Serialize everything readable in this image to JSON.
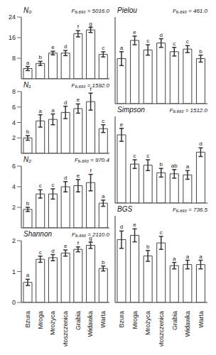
{
  "chart_data": [
    {
      "type": "bar",
      "title": "N₀",
      "annotation": "F₆,₆₉₃ = 5016.0",
      "categories": [
        "Bzura",
        "Mroga",
        "Mrożyca",
        "Moszczenica",
        "Grabia",
        "Widawka",
        "Warta"
      ],
      "values": [
        4,
        6,
        10,
        10,
        17.5,
        19,
        9.5
      ],
      "errors": [
        0.8,
        0.8,
        0.7,
        1,
        1.2,
        1,
        1
      ],
      "letters": [
        "a",
        "b",
        "e",
        "d",
        "f",
        "g",
        "c"
      ],
      "color": "#ffffff",
      "ylim": [
        0,
        24
      ],
      "yticks": [
        0,
        8,
        16,
        24
      ],
      "tick_labels": "y"
    },
    {
      "type": "bar",
      "title": "N₁",
      "annotation": "F₆,₆₉₃ = 1592.0",
      "categories": [
        "Bzura",
        "Mroga",
        "Mrożyca",
        "Moszczenica",
        "Grabia",
        "Widawka",
        "Warta"
      ],
      "values": [
        2,
        4.2,
        4.4,
        5.3,
        5.8,
        6.7,
        3.2
      ],
      "errors": [
        0.3,
        0.8,
        0.7,
        0.8,
        0.6,
        1.1,
        0.5
      ],
      "letters": [
        "b",
        "a",
        "a",
        "d",
        "e",
        "f",
        "c"
      ],
      "color": "#ffffff",
      "ylim": [
        0,
        8
      ],
      "yticks": [
        0,
        2,
        4,
        6,
        8
      ],
      "tick_labels": "y"
    },
    {
      "type": "bar",
      "title": "N₂",
      "annotation": "F₆,₆₉₃ = 970.4",
      "categories": [
        "Bzura",
        "Mroga",
        "Mrożyca",
        "Moszczenica",
        "Grabia",
        "Widawka",
        "Warta"
      ],
      "values": [
        1.8,
        3.3,
        3.3,
        4.0,
        4.1,
        4.4,
        2.4
      ],
      "errors": [
        0.2,
        0.4,
        0.5,
        0.5,
        0.6,
        0.8,
        0.3
      ],
      "letters": [
        "b",
        "c",
        "c",
        "d",
        "e",
        "f",
        "a"
      ],
      "color": "#ffffff",
      "ylim": [
        0,
        6
      ],
      "yticks": [
        0,
        2,
        4,
        6
      ],
      "tick_labels": "y"
    },
    {
      "type": "bar",
      "title": "Shannon",
      "annotation": "F₆,₆₉₃ = 2110.0",
      "categories": [
        "Bzura",
        "Mroga",
        "Mrożyca",
        "Moszczenica",
        "Grabia",
        "Widawka",
        "Warta"
      ],
      "values": [
        0.65,
        1.4,
        1.45,
        1.6,
        1.72,
        1.85,
        1.1
      ],
      "errors": [
        0.1,
        0.1,
        0.1,
        0.1,
        0.08,
        0.1,
        0.08
      ],
      "letters": [
        "a",
        "c",
        "d",
        "e",
        "f",
        "g",
        "b"
      ],
      "color": "#ffffff",
      "ylim": [
        0,
        2
      ],
      "yticks": [
        0,
        1,
        2
      ]
    },
    {
      "type": "bar",
      "title": "Pielou",
      "annotation": "F₆,₆₉₃ = 461.0",
      "categories": [
        "Bzura",
        "Mroga",
        "Mrożyca",
        "Moszczenica",
        "Grabia",
        "Widawka",
        "Warta"
      ],
      "values": [
        0.52,
        0.73,
        0.62,
        0.7,
        0.6,
        0.63,
        0.52
      ],
      "errors": [
        0.08,
        0.05,
        0.06,
        0.05,
        0.05,
        0.04,
        0.04
      ],
      "letters": [
        "a",
        "e",
        "c",
        "d",
        "c",
        "c",
        "b"
      ],
      "color": "#ffffff",
      "ylim": [
        0,
        1
      ],
      "tick_labels": false
    },
    {
      "type": "bar",
      "title": "Simpson",
      "annotation": "F₆,₆₉₃ = 1512.0",
      "categories": [
        "Bzura",
        "Mroga",
        "Mrożyca",
        "Moszczenica",
        "Grabia",
        "Widawka",
        "Warta"
      ],
      "values": [
        0.63,
        0.36,
        0.35,
        0.28,
        0.27,
        0.26,
        0.47
      ],
      "errors": [
        0.06,
        0.04,
        0.05,
        0.04,
        0.04,
        0.04,
        0.04
      ],
      "letters": [
        "e",
        "c",
        "c",
        "b",
        "ab",
        "a",
        "d"
      ],
      "color": "#ffffff",
      "ylim": [
        0,
        0.8
      ],
      "tick_labels": false
    },
    {
      "type": "bar",
      "title": "BGS",
      "annotation": "F₆,₆₉₃ = 736.5",
      "categories": [
        "Bzura",
        "Mroga",
        "Mrożyca",
        "Moszczenica",
        "Grabia",
        "Widawka",
        "Warta"
      ],
      "values": [
        0.58,
        0.62,
        0.43,
        0.55,
        0.34,
        0.35,
        0.35
      ],
      "errors": [
        0.08,
        0.06,
        0.05,
        0.06,
        0.03,
        0.04,
        0.04
      ],
      "letters": [
        "d",
        "e",
        "b",
        "c",
        "a",
        "a",
        "a"
      ],
      "color": "#ffffff",
      "ylim": [
        0,
        0.8
      ],
      "tick_labels": "x"
    }
  ]
}
